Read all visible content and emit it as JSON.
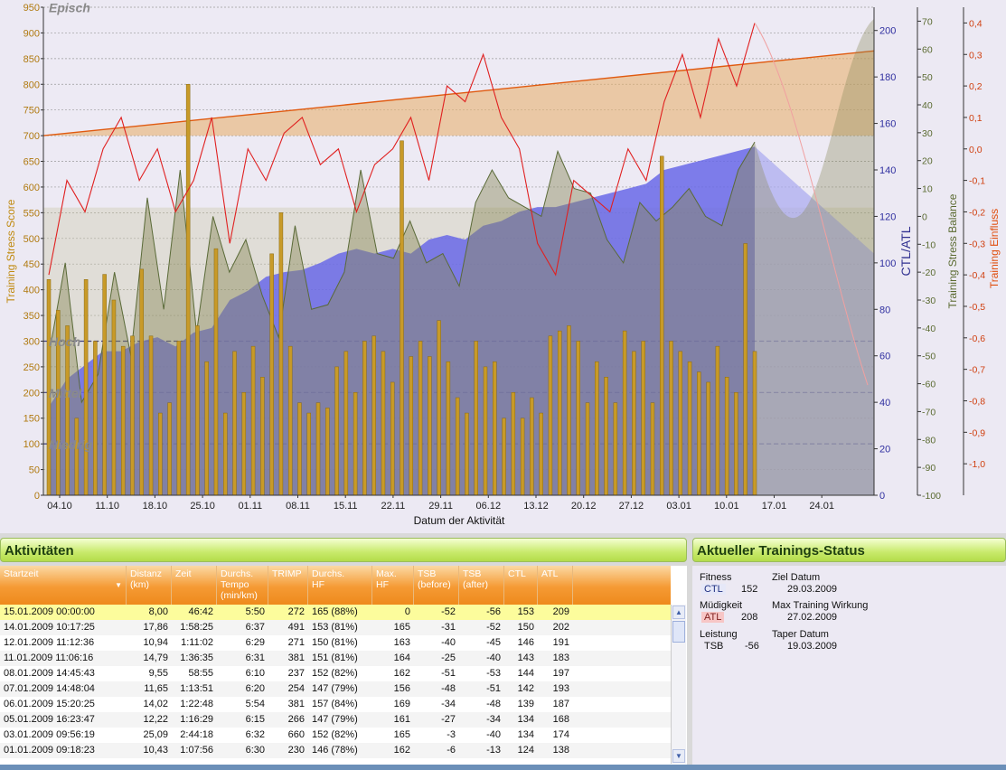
{
  "chart": {
    "left_axis_title": "Training Stress Score",
    "ctl_atl_axis_title": "CTL/ATL",
    "tsb_axis_title": "Training Stress Balance",
    "einfluss_axis_title": "Training Einfluss",
    "x_axis_title": "Datum der Aktivität",
    "zone_labels": [
      "Episch",
      "Hoch",
      "Mittel",
      "Niedrig"
    ],
    "colors": {
      "ctl_fill": "#6868e8",
      "atl_line": "#7a8a58",
      "tsb_fill": "#8a8a58",
      "influence_line": "#e02020",
      "bars": "#c89a28",
      "forecast_band": "#e8b070"
    }
  },
  "chart_data": {
    "type": "bar",
    "title": "",
    "xlabel": "Datum der Aktivität",
    "x_ticks": [
      "04.10",
      "11.10",
      "18.10",
      "25.10",
      "01.11",
      "08.11",
      "15.11",
      "22.11",
      "29.11",
      "06.12",
      "13.12",
      "20.12",
      "27.12",
      "03.01",
      "10.01",
      "17.01",
      "24.01"
    ],
    "axes": {
      "tss": {
        "label": "Training Stress Score",
        "range": [
          0,
          950
        ],
        "ticks": [
          0,
          50,
          100,
          150,
          200,
          250,
          300,
          350,
          400,
          450,
          500,
          550,
          600,
          650,
          700,
          750,
          800,
          850,
          900,
          950
        ]
      },
      "ctl_atl": {
        "label": "CTL/ATL",
        "range": [
          0,
          210
        ],
        "ticks": [
          0,
          20,
          40,
          60,
          80,
          100,
          120,
          140,
          160,
          180,
          200
        ]
      },
      "tsb": {
        "label": "Training Stress Balance",
        "range": [
          -100,
          75
        ],
        "ticks": [
          -100,
          -90,
          -80,
          -70,
          -60,
          -50,
          -40,
          -30,
          -20,
          -10,
          0,
          10,
          20,
          30,
          40,
          50,
          60,
          70
        ]
      },
      "einfluss": {
        "label": "Training Einfluss",
        "range": [
          -1.1,
          0.45
        ],
        "ticks": [
          "-1,0",
          "-0,9",
          "-0,8",
          "-0,7",
          "-0,6",
          "-0,5",
          "-0,4",
          "-0,3",
          "-0,2",
          "-0,1",
          "0,0",
          "0,1",
          "0,2",
          "0,3",
          "0,4"
        ]
      }
    },
    "series": [
      {
        "type": "bar",
        "values": [
          420,
          360,
          330,
          150,
          420,
          300,
          430,
          380,
          290,
          310,
          440,
          310,
          160,
          180,
          300,
          800,
          330,
          260,
          480,
          160,
          280,
          200,
          290,
          230,
          470,
          550,
          290,
          180,
          160,
          180,
          170,
          250,
          280,
          200,
          300,
          310,
          280,
          220,
          690,
          270,
          300,
          270,
          340,
          260,
          190,
          160,
          300,
          250,
          260,
          150,
          200,
          150,
          190,
          160,
          310,
          320,
          330,
          300,
          180,
          260,
          230,
          180,
          320,
          280,
          300,
          180,
          660,
          300,
          280,
          260,
          240,
          220,
          290,
          230,
          200,
          490,
          280
        ]
      },
      {
        "name": "CTL",
        "type": "area",
        "values": [
          38,
          50,
          56,
          62,
          62,
          66,
          68,
          64,
          70,
          72,
          84,
          88,
          94,
          96,
          97,
          100,
          104,
          106,
          104,
          106,
          104,
          110,
          112,
          110,
          116,
          118,
          122,
          124,
          124,
          126,
          128,
          130,
          132,
          134,
          140,
          142,
          144,
          146,
          148,
          150
        ]
      },
      {
        "name": "ATL",
        "type": "line",
        "values": [
          60,
          100,
          40,
          52,
          96,
          60,
          128,
          80,
          140,
          70,
          120,
          96,
          110,
          86,
          68,
          116,
          80,
          82,
          96,
          140,
          104,
          102,
          118,
          100,
          104,
          90,
          126,
          140,
          128,
          124,
          120,
          148,
          132,
          130,
          110,
          100,
          126,
          118,
          124,
          132,
          120,
          116,
          140,
          152
        ]
      },
      {
        "name": "Training Einfluss",
        "type": "line",
        "values": [
          -0.4,
          -0.1,
          -0.2,
          0.0,
          0.1,
          -0.1,
          0.0,
          -0.2,
          -0.1,
          0.1,
          -0.3,
          0.0,
          -0.1,
          0.05,
          0.1,
          -0.05,
          0.0,
          -0.2,
          -0.05,
          0.0,
          0.1,
          -0.1,
          0.2,
          0.15,
          0.3,
          0.1,
          0.0,
          -0.3,
          -0.4,
          -0.1,
          -0.15,
          -0.2,
          0.0,
          -0.1,
          0.15,
          0.3,
          0.1,
          0.35,
          0.2,
          0.4
        ]
      }
    ]
  },
  "activities_panel": {
    "title": "Aktivitäten",
    "columns": [
      "Startzeit",
      "Distanz\n(km)",
      "Zeit",
      "Durchs.\nTempo\n(min/km)",
      "TRIMP",
      "Durchs.\nHF",
      "Max.\nHF",
      "TSB\n(before)",
      "TSB\n(after)",
      "CTL",
      "ATL"
    ],
    "rows": [
      [
        "15.01.2009 00:00:00",
        "8,00",
        "46:42",
        "5:50",
        "272",
        "165 (88%)",
        "0",
        "-52",
        "-56",
        "153",
        "209"
      ],
      [
        "14.01.2009 10:17:25",
        "17,86",
        "1:58:25",
        "6:37",
        "491",
        "153 (81%)",
        "165",
        "-31",
        "-52",
        "150",
        "202"
      ],
      [
        "12.01.2009 11:12:36",
        "10,94",
        "1:11:02",
        "6:29",
        "271",
        "150 (81%)",
        "163",
        "-40",
        "-45",
        "146",
        "191"
      ],
      [
        "11.01.2009 11:06:16",
        "14,79",
        "1:36:35",
        "6:31",
        "381",
        "151 (81%)",
        "164",
        "-25",
        "-40",
        "143",
        "183"
      ],
      [
        "08.01.2009 14:45:43",
        "9,55",
        "58:55",
        "6:10",
        "237",
        "152 (82%)",
        "162",
        "-51",
        "-53",
        "144",
        "197"
      ],
      [
        "07.01.2009 14:48:04",
        "11,65",
        "1:13:51",
        "6:20",
        "254",
        "147 (79%)",
        "156",
        "-48",
        "-51",
        "142",
        "193"
      ],
      [
        "06.01.2009 15:20:25",
        "14,02",
        "1:22:48",
        "5:54",
        "381",
        "157 (84%)",
        "169",
        "-34",
        "-48",
        "139",
        "187"
      ],
      [
        "05.01.2009 16:23:47",
        "12,22",
        "1:16:29",
        "6:15",
        "266",
        "147 (79%)",
        "161",
        "-27",
        "-34",
        "134",
        "168"
      ],
      [
        "03.01.2009 09:56:19",
        "25,09",
        "2:44:18",
        "6:32",
        "660",
        "152 (82%)",
        "165",
        "-3",
        "-40",
        "134",
        "174"
      ],
      [
        "01.01.2009 09:18:23",
        "10,43",
        "1:07:56",
        "6:30",
        "230",
        "146 (78%)",
        "162",
        "-6",
        "-13",
        "124",
        "138"
      ]
    ]
  },
  "status_panel": {
    "title": "Aktueller Trainings-Status",
    "fitness_label": "Fitness",
    "ctl_abbr": "CTL",
    "ctl_value": "152",
    "fatigue_label": "Müdigkeit",
    "atl_abbr": "ATL",
    "atl_value": "208",
    "performance_label": "Leistung",
    "tsb_abbr": "TSB",
    "tsb_value": "-56",
    "target_date_label": "Ziel Datum",
    "target_date": "29.03.2009",
    "max_effect_label": "Max Training Wirkung",
    "max_effect_date": "27.02.2009",
    "taper_label": "Taper Datum",
    "taper_date": "19.03.2009"
  }
}
